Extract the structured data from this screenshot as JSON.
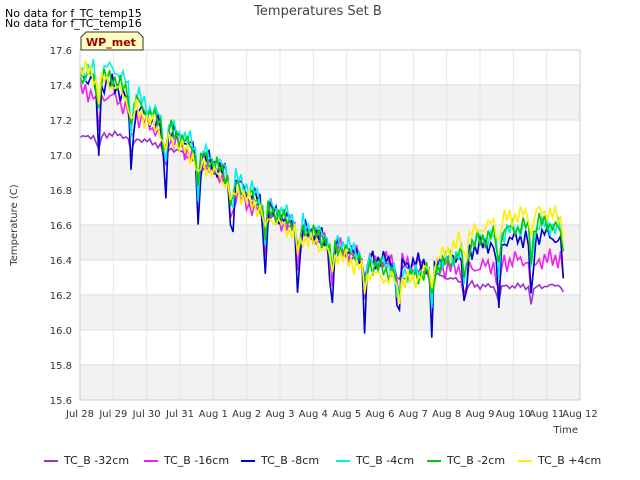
{
  "notes": [
    "No data for f_TC_temp15",
    "No data for f_TC_temp16"
  ],
  "chart_data": {
    "type": "line",
    "title": "Temperatures Set B",
    "xlabel": "Time",
    "ylabel": "Temperature (C)",
    "ylim": [
      15.6,
      17.6
    ],
    "yticks": [
      15.6,
      15.8,
      16.0,
      16.2,
      16.4,
      16.6,
      16.8,
      17.0,
      17.2,
      17.4,
      17.6
    ],
    "xlim": [
      "Jul 28",
      "Aug 12"
    ],
    "xticks": [
      "Jul 28",
      "Jul 29",
      "Jul 30",
      "Jul 31",
      "Aug 1",
      "Aug 2",
      "Aug 3",
      "Aug 4",
      "Aug 5",
      "Aug 6",
      "Aug 7",
      "Aug 8",
      "Aug 9",
      "Aug 10",
      "Aug 11",
      "Aug 12"
    ],
    "grid": true,
    "annotation": "WP_met",
    "legend_position": "bottom",
    "x": [
      "Jul 28",
      "Jul 29",
      "Jul 30",
      "Jul 31",
      "Aug 1",
      "Aug 2",
      "Aug 3",
      "Aug 4",
      "Aug 5",
      "Aug 6",
      "Aug 7",
      "Aug 8",
      "Aug 9",
      "Aug 10",
      "Aug 11",
      "Aug 11 12:00"
    ],
    "series": [
      {
        "name": "TC_B -32cm",
        "color": "#9933cc",
        "values": [
          17.1,
          17.12,
          17.08,
          17.02,
          16.9,
          16.75,
          16.62,
          16.52,
          16.42,
          16.38,
          16.35,
          16.3,
          16.25,
          16.25,
          16.25,
          16.26
        ]
      },
      {
        "name": "TC_B -16cm",
        "color": "#ee22ee",
        "values": [
          17.37,
          17.33,
          17.18,
          17.05,
          16.92,
          16.72,
          16.62,
          16.55,
          16.45,
          16.4,
          16.38,
          16.35,
          16.36,
          16.4,
          16.4,
          16.42
        ]
      },
      {
        "name": "TC_B -8cm",
        "color": "#0000cc",
        "values": [
          17.45,
          17.4,
          17.22,
          17.1,
          16.95,
          16.8,
          16.65,
          16.55,
          16.45,
          16.4,
          16.38,
          16.4,
          16.48,
          16.52,
          16.55,
          16.5
        ]
      },
      {
        "name": "TC_B -4cm",
        "color": "#00eeee",
        "values": [
          17.48,
          17.5,
          17.28,
          17.12,
          16.98,
          16.82,
          16.68,
          16.58,
          16.48,
          16.38,
          16.32,
          16.4,
          16.52,
          16.58,
          16.6,
          16.58
        ]
      },
      {
        "name": "TC_B -2cm",
        "color": "#00cc00",
        "values": [
          17.45,
          17.44,
          17.25,
          17.1,
          16.95,
          16.78,
          16.65,
          16.55,
          16.45,
          16.35,
          16.3,
          16.38,
          16.52,
          16.58,
          16.62,
          16.55
        ]
      },
      {
        "name": "TC_B +4cm",
        "color": "#ffee00",
        "values": [
          17.5,
          17.4,
          17.2,
          17.05,
          16.9,
          16.75,
          16.6,
          16.5,
          16.4,
          16.3,
          16.28,
          16.45,
          16.58,
          16.65,
          16.68,
          16.62
        ]
      }
    ]
  }
}
